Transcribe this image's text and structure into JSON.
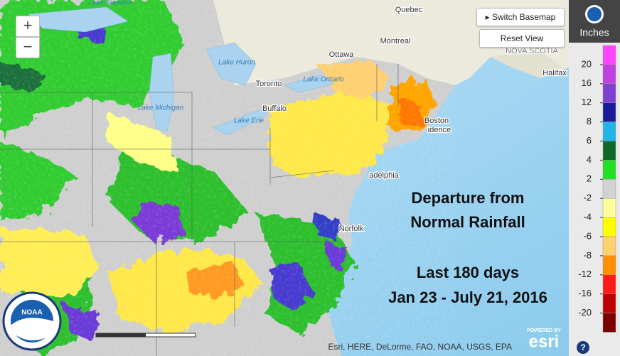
{
  "controls": {
    "zoom_in": "+",
    "zoom_out": "−",
    "switch_basemap": "Switch Basemap",
    "reset_view": "Reset View"
  },
  "legend": {
    "title": "Inches",
    "values": [
      20,
      16,
      12,
      8,
      6,
      4,
      2,
      -2,
      -4,
      -6,
      -8,
      -12,
      -16,
      -20
    ],
    "colors": [
      "#ff44ff",
      "#c040e0",
      "#8040d0",
      "#1a1a9a",
      "#22b4e8",
      "#0f6a2a",
      "#22e022",
      "#d2d2d2",
      "#ffff99",
      "#ffff00",
      "#ffd070",
      "#ff9000",
      "#ff1a1a",
      "#c00000",
      "#7a0000"
    ]
  },
  "overlay": {
    "title": [
      "Departure from",
      "Normal Rainfall"
    ],
    "period": [
      "Last 180 days",
      "Jan 23 - July 21, 2016"
    ]
  },
  "places": [
    "Quebec",
    "Montreal",
    "Ottawa",
    "Toronto",
    "Buffalo",
    "Boston",
    "idence",
    "NOVA SCOTIA",
    "Halifax",
    "adelphia",
    "Norfolk",
    "Lake Superior",
    "Lake Huron",
    "Lake Michigan",
    "Lake Erie",
    "Lake Ontario"
  ],
  "attribution": "Esri, HERE, DeLorme, FAO, NOAA, USGS, EPA",
  "esri": {
    "powered_by": "POWERED BY",
    "logo": "esri"
  },
  "noaa_logo": "NOAA",
  "help": "?"
}
